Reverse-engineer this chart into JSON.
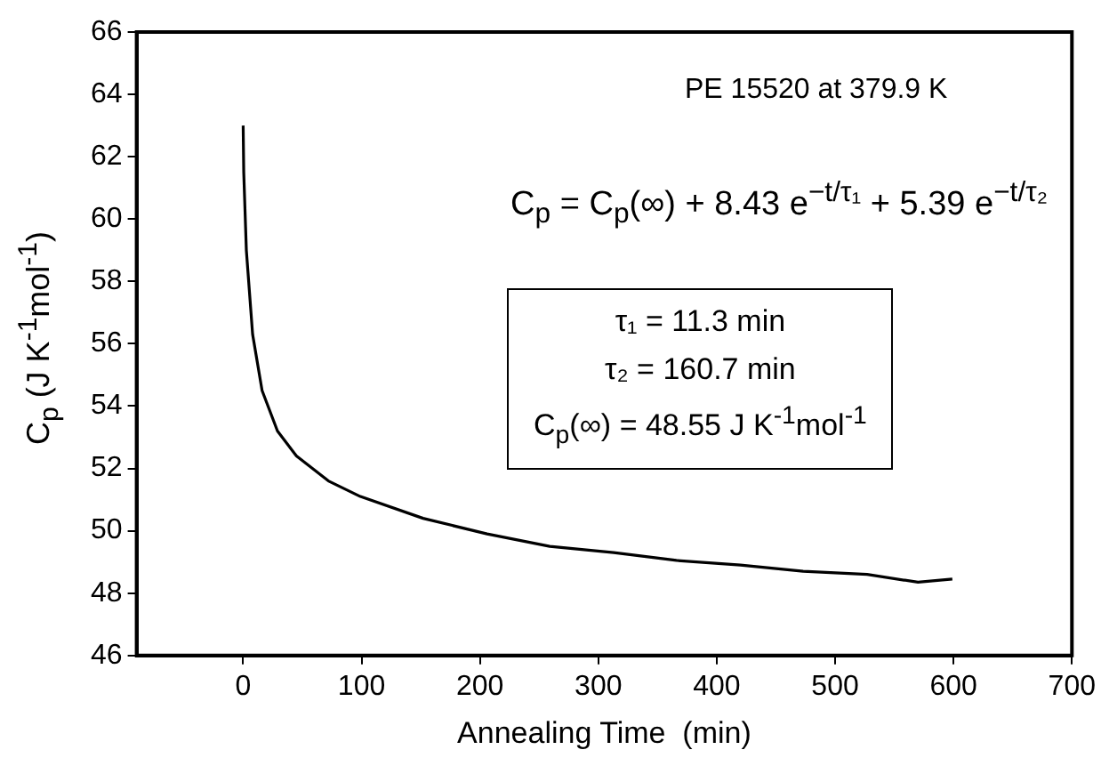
{
  "chart_data": {
    "type": "line",
    "xlabel": "Annealing Time  (min)",
    "ylabel": "C$_{p}$ (J K$^{-1}$mol$^{-1}$)",
    "annotations": [
      "PE 15520  at 379.9 K",
      "C$_{p}$ = C$_{p}$(∞) + 8.43 e$^{−t/τ₁}$ + 5.39 e$^{−t/τ₂}$",
      "τ₁ =  11.3 min",
      "τ₂ = 160.7 min",
      "C$_{p}$(∞) = 48.55 J K$^{-1}$mol$^{-1}$"
    ],
    "series": [
      {
        "color": "#000000",
        "x": [
          0,
          0.5,
          2.7,
          8,
          16,
          29,
          45,
          72,
          99,
          152,
          206,
          259,
          313,
          366,
          420,
          473,
          527,
          570,
          599
        ],
        "values": [
          63.0,
          61.5,
          59.0,
          56.3,
          54.5,
          53.2,
          52.4,
          51.6,
          51.1,
          50.4,
          49.9,
          49.5,
          49.3,
          49.05,
          48.9,
          48.7,
          48.6,
          48.35,
          48.45
        ]
      }
    ],
    "xlim": [
      -90,
      700
    ],
    "xticks": [
      0,
      100,
      200,
      300,
      400,
      500,
      600,
      700
    ],
    "ylim": [
      46,
      66
    ],
    "yticks": [
      46,
      48,
      50,
      52,
      54,
      56,
      58,
      60,
      62,
      64,
      66
    ],
    "marker": "none",
    "line_style": "solid",
    "legend": false
  }
}
